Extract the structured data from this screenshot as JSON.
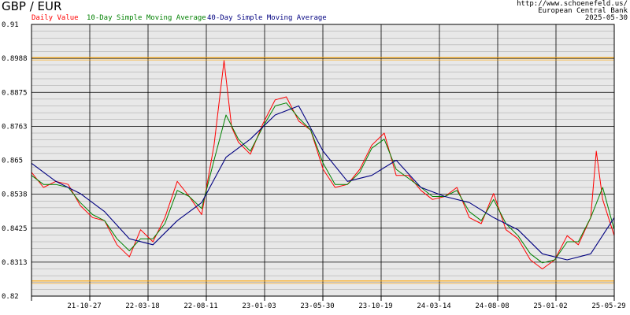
{
  "header": {
    "title": "GBP / EUR",
    "source_url": "http://www.schoenefeld.us/",
    "source_name": "European Central Bank",
    "source_date": "2025-05-30"
  },
  "legend": {
    "daily": "Daily Value",
    "sma10": "10-Day Simple Moving Average",
    "sma40": "40-Day Simple Moving Average"
  },
  "colors": {
    "daily": "#ff0000",
    "sma10": "#008000",
    "sma40": "#000080",
    "band": "#ffa500",
    "plot_bg": "#e8e8e8",
    "grid_major": "#000000",
    "grid_minor": "#a0a0a0"
  },
  "chart_data": {
    "type": "line",
    "title": "GBP / EUR",
    "ylim": [
      0.82,
      0.91
    ],
    "y_ticks": [
      "0.91",
      "0.8988",
      "0.8875",
      "0.8763",
      "0.865",
      "0.8538",
      "0.8425",
      "0.8313",
      "0.82"
    ],
    "x_ticks": [
      "21-10-27",
      "22-03-18",
      "22-08-11",
      "23-01-03",
      "23-05-30",
      "23-10-19",
      "24-03-14",
      "24-08-08",
      "25-01-02",
      "25-05-29"
    ],
    "x_domain": [
      "2021-06-01",
      "2025-05-30"
    ],
    "bands": [
      0.899,
      0.825
    ],
    "grid": true,
    "series": [
      {
        "name": "Daily Value",
        "color": "#ff0000",
        "x": [
          "2021-06-01",
          "2021-07-01",
          "2021-08-01",
          "2021-09-01",
          "2021-10-01",
          "2021-11-01",
          "2021-12-01",
          "2022-01-01",
          "2022-02-01",
          "2022-03-01",
          "2022-04-01",
          "2022-05-01",
          "2022-06-01",
          "2022-07-01",
          "2022-08-01",
          "2022-09-01",
          "2022-09-26",
          "2022-10-15",
          "2022-11-01",
          "2022-12-01",
          "2023-01-01",
          "2023-02-01",
          "2023-03-01",
          "2023-04-01",
          "2023-05-01",
          "2023-06-01",
          "2023-07-01",
          "2023-08-01",
          "2023-09-01",
          "2023-10-01",
          "2023-11-01",
          "2023-12-01",
          "2024-01-01",
          "2024-02-01",
          "2024-03-01",
          "2024-04-01",
          "2024-05-01",
          "2024-06-01",
          "2024-07-01",
          "2024-08-01",
          "2024-09-01",
          "2024-10-01",
          "2024-11-01",
          "2024-12-01",
          "2025-01-01",
          "2025-02-01",
          "2025-03-01",
          "2025-04-01",
          "2025-04-15",
          "2025-05-01",
          "2025-05-30"
        ],
        "values": [
          0.861,
          0.856,
          0.858,
          0.857,
          0.85,
          0.846,
          0.845,
          0.837,
          0.833,
          0.842,
          0.838,
          0.846,
          0.858,
          0.853,
          0.847,
          0.87,
          0.898,
          0.876,
          0.871,
          0.867,
          0.877,
          0.885,
          0.886,
          0.878,
          0.875,
          0.862,
          0.856,
          0.857,
          0.862,
          0.87,
          0.874,
          0.86,
          0.86,
          0.855,
          0.852,
          0.853,
          0.856,
          0.846,
          0.844,
          0.854,
          0.842,
          0.839,
          0.832,
          0.829,
          0.832,
          0.84,
          0.837,
          0.846,
          0.868,
          0.852,
          0.84
        ]
      },
      {
        "name": "10-Day Simple Moving Average",
        "color": "#008000",
        "x": [
          "2021-06-01",
          "2021-07-01",
          "2021-08-01",
          "2021-09-01",
          "2021-10-01",
          "2021-11-01",
          "2021-12-01",
          "2022-01-01",
          "2022-02-01",
          "2022-03-01",
          "2022-04-01",
          "2022-05-01",
          "2022-06-01",
          "2022-07-01",
          "2022-08-01",
          "2022-09-01",
          "2022-10-01",
          "2022-11-01",
          "2022-12-01",
          "2023-01-01",
          "2023-02-01",
          "2023-03-01",
          "2023-04-01",
          "2023-05-01",
          "2023-06-01",
          "2023-07-01",
          "2023-08-01",
          "2023-09-01",
          "2023-10-01",
          "2023-11-01",
          "2023-12-01",
          "2024-01-01",
          "2024-02-01",
          "2024-03-01",
          "2024-04-01",
          "2024-05-01",
          "2024-06-01",
          "2024-07-01",
          "2024-08-01",
          "2024-09-01",
          "2024-10-01",
          "2024-11-01",
          "2024-12-01",
          "2025-01-01",
          "2025-02-01",
          "2025-03-01",
          "2025-04-01",
          "2025-05-01",
          "2025-05-30"
        ],
        "values": [
          0.86,
          0.857,
          0.857,
          0.856,
          0.851,
          0.847,
          0.845,
          0.839,
          0.835,
          0.839,
          0.839,
          0.844,
          0.855,
          0.853,
          0.849,
          0.865,
          0.88,
          0.872,
          0.868,
          0.876,
          0.883,
          0.884,
          0.879,
          0.875,
          0.864,
          0.857,
          0.857,
          0.861,
          0.869,
          0.872,
          0.862,
          0.859,
          0.856,
          0.853,
          0.853,
          0.855,
          0.848,
          0.845,
          0.852,
          0.844,
          0.84,
          0.834,
          0.831,
          0.832,
          0.838,
          0.838,
          0.846,
          0.856,
          0.842
        ]
      },
      {
        "name": "40-Day Simple Moving Average",
        "color": "#000080",
        "x": [
          "2021-06-01",
          "2021-08-01",
          "2021-10-01",
          "2021-12-01",
          "2022-02-01",
          "2022-04-01",
          "2022-06-01",
          "2022-08-01",
          "2022-10-01",
          "2022-12-01",
          "2023-02-01",
          "2023-04-01",
          "2023-06-01",
          "2023-08-01",
          "2023-10-01",
          "2023-12-01",
          "2024-02-01",
          "2024-04-01",
          "2024-06-01",
          "2024-08-01",
          "2024-10-01",
          "2024-12-01",
          "2025-02-01",
          "2025-04-01",
          "2025-05-30"
        ],
        "values": [
          0.864,
          0.858,
          0.854,
          0.848,
          0.839,
          0.837,
          0.845,
          0.851,
          0.866,
          0.872,
          0.88,
          0.883,
          0.868,
          0.858,
          0.86,
          0.865,
          0.856,
          0.853,
          0.851,
          0.846,
          0.842,
          0.834,
          0.832,
          0.834,
          0.846
        ]
      }
    ]
  }
}
